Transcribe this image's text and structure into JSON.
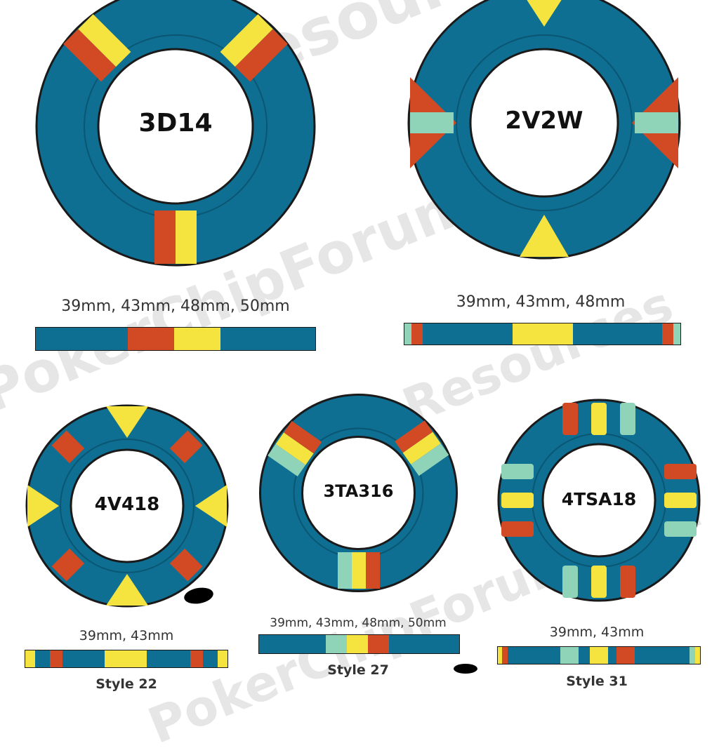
{
  "colors": {
    "teal": "#0e6f93",
    "red": "#d14a24",
    "yellow": "#f5e43f",
    "mint": "#8fd3b8",
    "outline": "#1a1a1a",
    "background": "#ffffff"
  },
  "watermark": {
    "lines": [
      "PCF Resources",
      "PokerChipForum.com"
    ]
  },
  "chips": [
    {
      "code": "3D14",
      "sizes": "39mm, 43mm, 48mm, 50mm",
      "style": ""
    },
    {
      "code": "2V2W",
      "sizes": "39mm, 43mm, 48mm",
      "style": ""
    },
    {
      "code": "4V418",
      "sizes": "39mm, 43mm",
      "style": "Style 22"
    },
    {
      "code": "3TA316",
      "sizes": "39mm, 43mm, 48mm, 50mm",
      "style": "Style 27"
    },
    {
      "code": "4TSA18",
      "sizes": "39mm, 43mm",
      "style": "Style 31"
    }
  ]
}
